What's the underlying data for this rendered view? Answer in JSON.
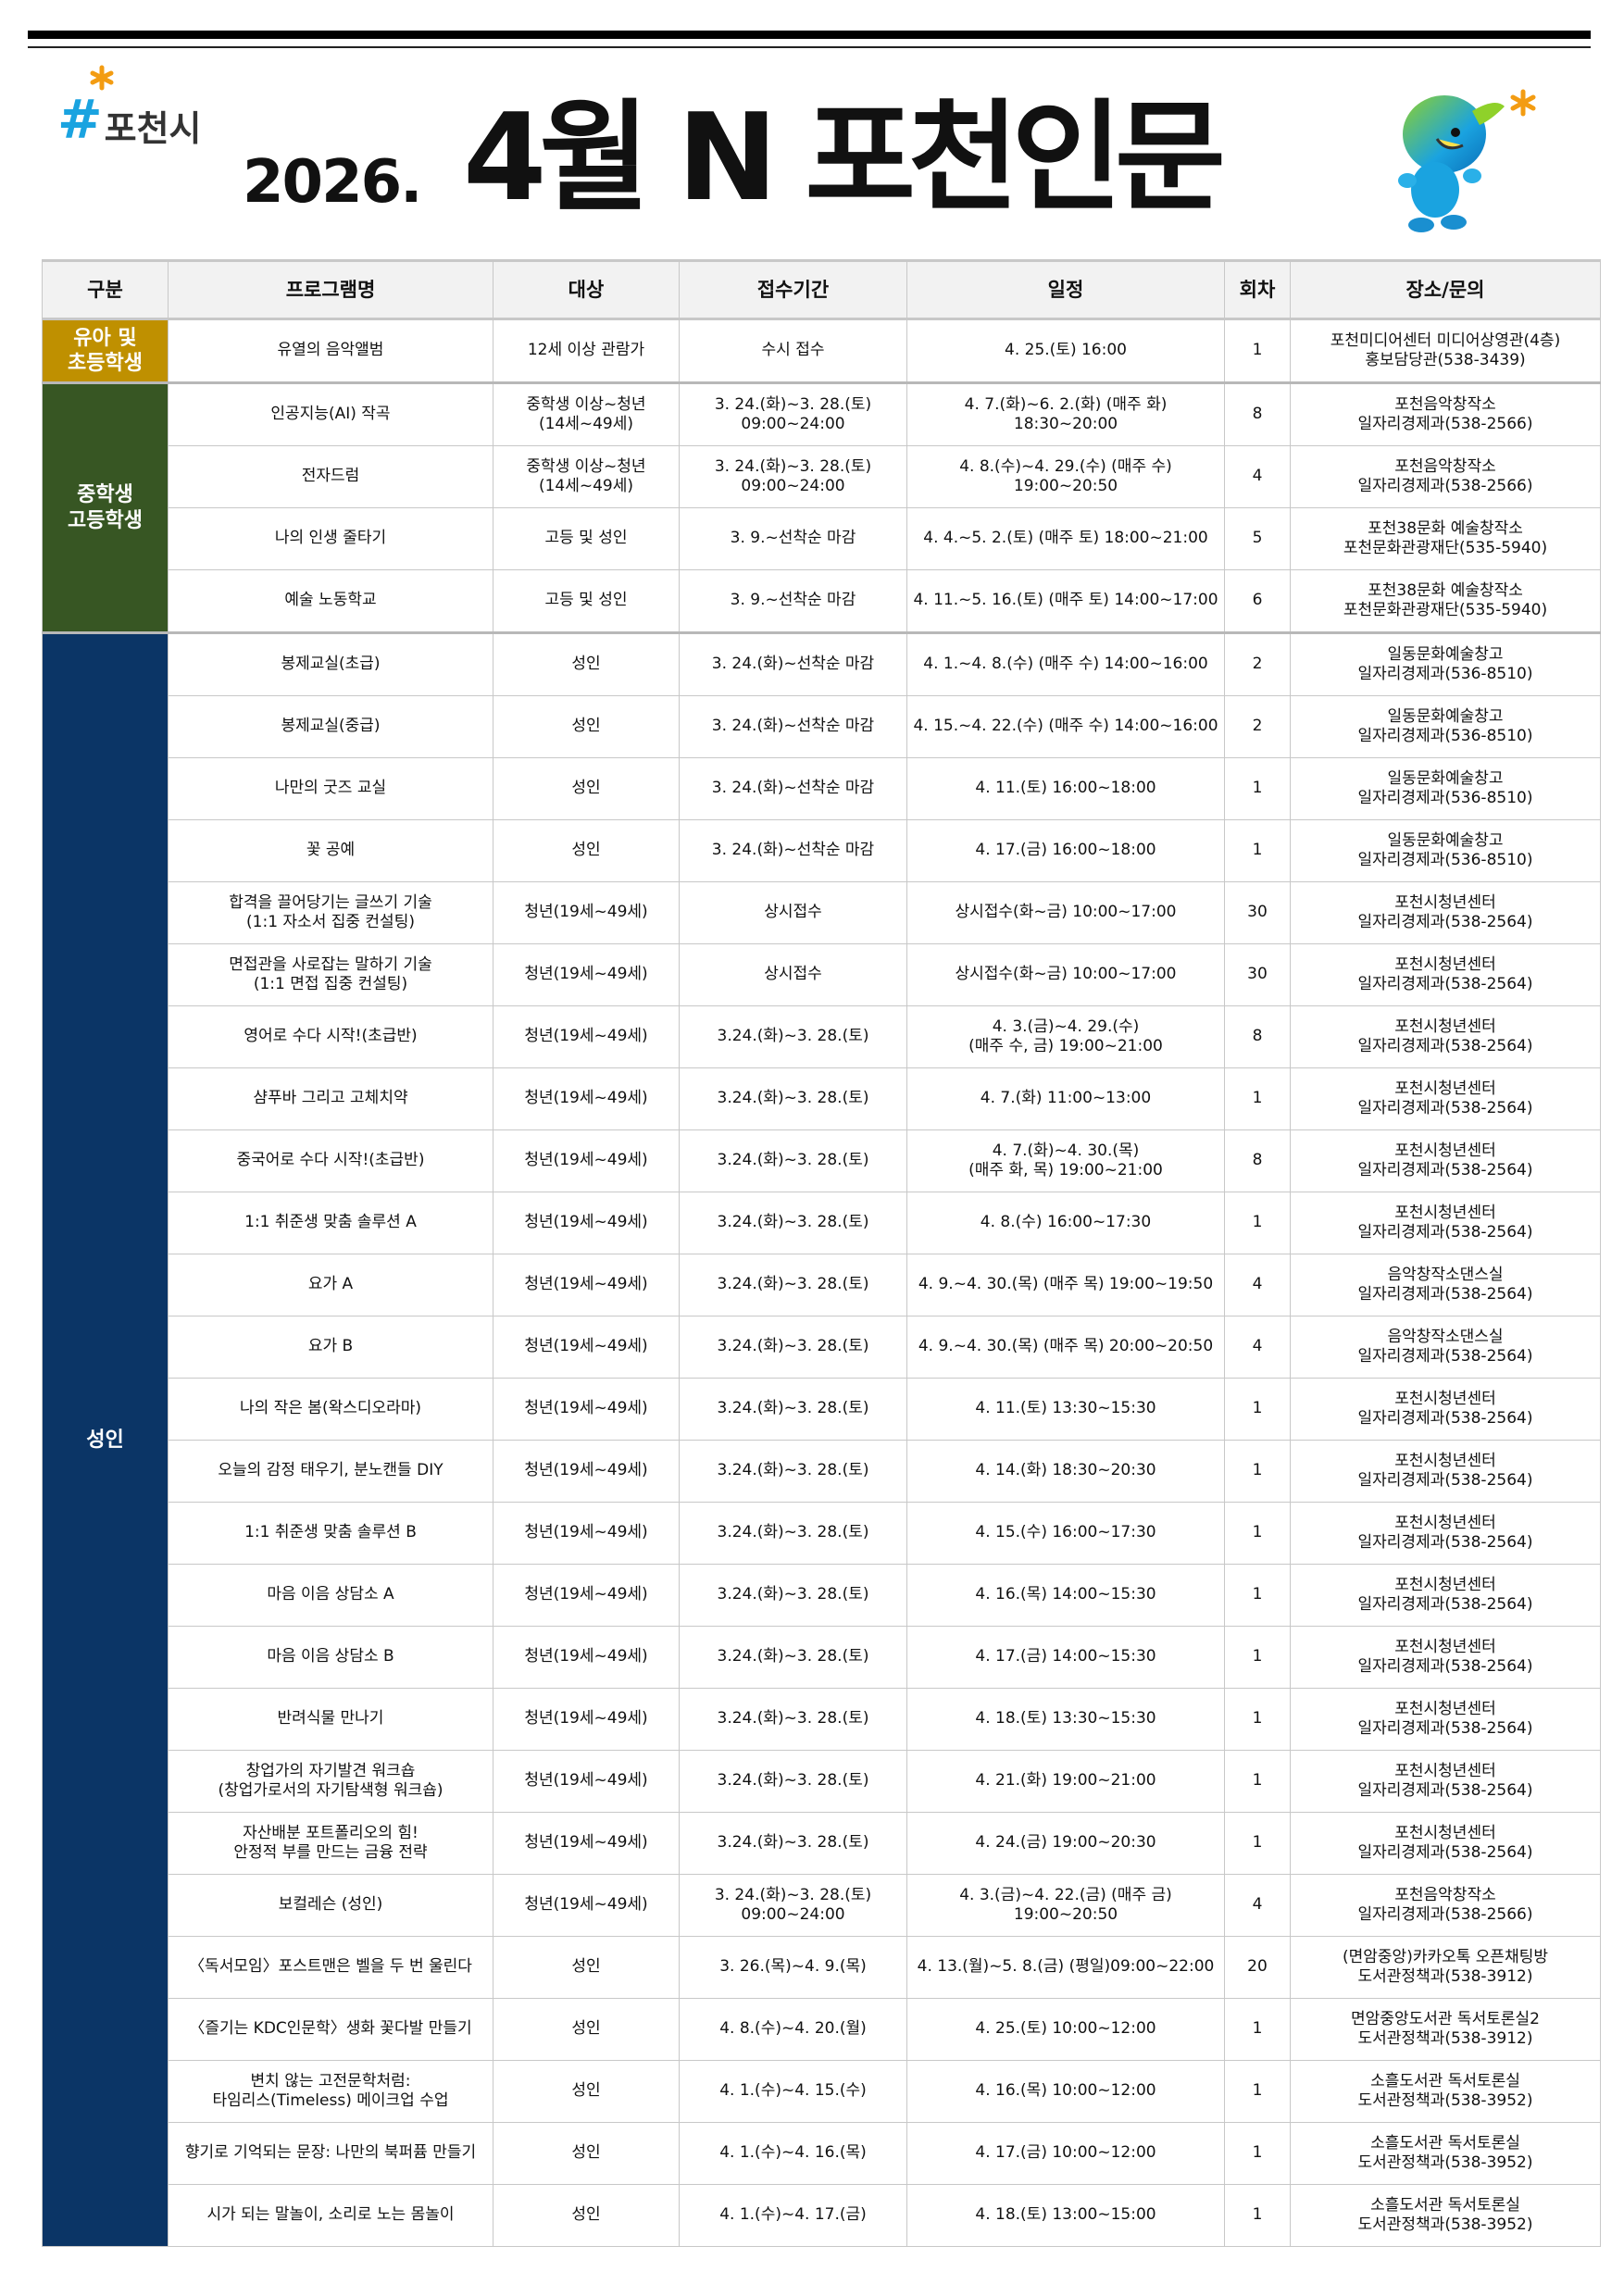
{
  "header": {
    "logo_text": "포천시",
    "year": "2026.",
    "title": "4월 N 포천인문"
  },
  "colors": {
    "youth": "#BF9000",
    "teen": "#375623",
    "adult": "#0B3566",
    "header_bg": "#F2F2F2"
  },
  "table": {
    "columns": [
      "구분",
      "프로그램명",
      "대상",
      "접수기간",
      "일정",
      "회차",
      "장소/문의"
    ],
    "groups": [
      {
        "label": "유아 및\n초등학생",
        "color": "#BF9000",
        "rows": [
          [
            "유열의 음악앨범",
            "12세 이상 관람가",
            "수시 접수",
            "4. 25.(토) 16:00",
            "1",
            "포천미디어센터 미디어상영관(4층)\n홍보담당관(538-3439)"
          ]
        ]
      },
      {
        "label": "중학생\n고등학생",
        "color": "#375623",
        "rows": [
          [
            "인공지능(AI) 작곡",
            "중학생 이상~청년\n(14세~49세)",
            "3. 24.(화)~3. 28.(토)\n09:00~24:00",
            "4. 7.(화)~6. 2.(화) (매주 화) 18:30~20:00",
            "8",
            "포천음악창작소\n일자리경제과(538-2566)"
          ],
          [
            "전자드럼",
            "중학생 이상~청년\n(14세~49세)",
            "3. 24.(화)~3. 28.(토)\n09:00~24:00",
            "4. 8.(수)~4. 29.(수) (매주 수) 19:00~20:50",
            "4",
            "포천음악창작소\n일자리경제과(538-2566)"
          ],
          [
            "나의 인생 줄타기",
            "고등 및 성인",
            "3. 9.~선착순 마감",
            "4. 4.~5. 2.(토) (매주 토) 18:00~21:00",
            "5",
            "포천38문화 예술창작소\n포천문화관광재단(535-5940)"
          ],
          [
            "예술 노동학교",
            "고등 및 성인",
            "3. 9.~선착순 마감",
            "4. 11.~5. 16.(토) (매주 토) 14:00~17:00",
            "6",
            "포천38문화 예술창작소\n포천문화관광재단(535-5940)"
          ]
        ]
      },
      {
        "label": "성인",
        "color": "#0B3566",
        "rows": [
          [
            "봉제교실(초급)",
            "성인",
            "3. 24.(화)~선착순 마감",
            "4. 1.~4. 8.(수) (매주 수) 14:00~16:00",
            "2",
            "일동문화예술창고\n일자리경제과(536-8510)"
          ],
          [
            "봉제교실(중급)",
            "성인",
            "3. 24.(화)~선착순 마감",
            "4. 15.~4. 22.(수) (매주 수) 14:00~16:00",
            "2",
            "일동문화예술창고\n일자리경제과(536-8510)"
          ],
          [
            "나만의 굿즈 교실",
            "성인",
            "3. 24.(화)~선착순 마감",
            "4. 11.(토) 16:00~18:00",
            "1",
            "일동문화예술창고\n일자리경제과(536-8510)"
          ],
          [
            "꽃 공예",
            "성인",
            "3. 24.(화)~선착순 마감",
            "4. 17.(금) 16:00~18:00",
            "1",
            "일동문화예술창고\n일자리경제과(536-8510)"
          ],
          [
            "합격을 끌어당기는 글쓰기 기술\n(1:1 자소서 집중 컨설팅)",
            "청년(19세~49세)",
            "상시접수",
            "상시접수(화~금) 10:00~17:00",
            "30",
            "포천시청년센터\n일자리경제과(538-2564)"
          ],
          [
            "면접관을 사로잡는 말하기 기술\n(1:1 면접 집중 컨설팅)",
            "청년(19세~49세)",
            "상시접수",
            "상시접수(화~금) 10:00~17:00",
            "30",
            "포천시청년센터\n일자리경제과(538-2564)"
          ],
          [
            "영어로 수다 시작!(초급반)",
            "청년(19세~49세)",
            "3.24.(화)~3. 28.(토)",
            "4. 3.(금)~4. 29.(수)\n(매주 수, 금) 19:00~21:00",
            "8",
            "포천시청년센터\n일자리경제과(538-2564)"
          ],
          [
            "샴푸바 그리고 고체치약",
            "청년(19세~49세)",
            "3.24.(화)~3. 28.(토)",
            "4. 7.(화) 11:00~13:00",
            "1",
            "포천시청년센터\n일자리경제과(538-2564)"
          ],
          [
            "중국어로 수다 시작!(초급반)",
            "청년(19세~49세)",
            "3.24.(화)~3. 28.(토)",
            "4. 7.(화)~4. 30.(목)\n(매주 화, 목) 19:00~21:00",
            "8",
            "포천시청년센터\n일자리경제과(538-2564)"
          ],
          [
            "1:1 취준생 맞춤 솔루션 A",
            "청년(19세~49세)",
            "3.24.(화)~3. 28.(토)",
            "4. 8.(수) 16:00~17:30",
            "1",
            "포천시청년센터\n일자리경제과(538-2564)"
          ],
          [
            "요가 A",
            "청년(19세~49세)",
            "3.24.(화)~3. 28.(토)",
            "4. 9.~4. 30.(목)  (매주 목) 19:00~19:50",
            "4",
            "음악창작소댄스실\n일자리경제과(538-2564)"
          ],
          [
            "요가 B",
            "청년(19세~49세)",
            "3.24.(화)~3. 28.(토)",
            "4. 9.~4. 30.(목)  (매주 목) 20:00~20:50",
            "4",
            "음악창작소댄스실\n일자리경제과(538-2564)"
          ],
          [
            "나의 작은 봄(왁스디오라마)",
            "청년(19세~49세)",
            "3.24.(화)~3. 28.(토)",
            "4. 11.(토) 13:30~15:30",
            "1",
            "포천시청년센터\n일자리경제과(538-2564)"
          ],
          [
            "오늘의 감정 태우기, 분노캔들 DIY",
            "청년(19세~49세)",
            "3.24.(화)~3. 28.(토)",
            "4. 14.(화) 18:30~20:30",
            "1",
            "포천시청년센터\n일자리경제과(538-2564)"
          ],
          [
            "1:1 취준생 맞춤 솔루션 B",
            "청년(19세~49세)",
            "3.24.(화)~3. 28.(토)",
            "4. 15.(수) 16:00~17:30",
            "1",
            "포천시청년센터\n일자리경제과(538-2564)"
          ],
          [
            "마음 이음 상담소 A",
            "청년(19세~49세)",
            "3.24.(화)~3. 28.(토)",
            "4. 16.(목) 14:00~15:30",
            "1",
            "포천시청년센터\n일자리경제과(538-2564)"
          ],
          [
            "마음 이음 상담소 B",
            "청년(19세~49세)",
            "3.24.(화)~3. 28.(토)",
            "4. 17.(금) 14:00~15:30",
            "1",
            "포천시청년센터\n일자리경제과(538-2564)"
          ],
          [
            "반려식물 만나기",
            "청년(19세~49세)",
            "3.24.(화)~3. 28.(토)",
            "4. 18.(토) 13:30~15:30",
            "1",
            "포천시청년센터\n일자리경제과(538-2564)"
          ],
          [
            "창업가의 자기발견 워크숍\n(창업가로서의 자기탐색형 워크숍)",
            "청년(19세~49세)",
            "3.24.(화)~3. 28.(토)",
            "4. 21.(화) 19:00~21:00",
            "1",
            "포천시청년센터\n일자리경제과(538-2564)"
          ],
          [
            "자산배분 포트폴리오의 힘!\n안정적 부를 만드는 금융 전략",
            "청년(19세~49세)",
            "3.24.(화)~3. 28.(토)",
            "4. 24.(금) 19:00~20:30",
            "1",
            "포천시청년센터\n일자리경제과(538-2564)"
          ],
          [
            "보컬레슨 (성인)",
            "청년(19세~49세)",
            "3. 24.(화)~3. 28.(토)\n09:00~24:00",
            "4. 3.(금)~4. 22.(금) (매주 금) 19:00~20:50",
            "4",
            "포천음악창작소\n일자리경제과(538-2566)"
          ],
          [
            "〈독서모임〉포스트맨은 벨을 두 번 울린다",
            "성인",
            "3. 26.(목)~4.  9.(목)",
            "4. 13.(월)~5. 8.(금) (평일)09:00~22:00",
            "20",
            "(면암중앙)카카오톡 오픈채팅방\n도서관정책과(538-3912)"
          ],
          [
            "〈즐기는 KDC인문학〉생화 꽃다발 만들기",
            "성인",
            "4. 8.(수)~4. 20.(월)",
            "4. 25.(토) 10:00~12:00",
            "1",
            "면암중앙도서관 독서토론실2\n도서관정책과(538-3912)"
          ],
          [
            "변치 않는 고전문학처럼:\n타임리스(Timeless) 메이크업 수업",
            "성인",
            "4. 1.(수)~4. 15.(수)",
            "4. 16.(목) 10:00~12:00",
            "1",
            "소흘도서관 독서토론실\n도서관정책과(538-3952)"
          ],
          [
            "향기로 기억되는 문장: 나만의 북퍼퓸 만들기",
            "성인",
            "4. 1.(수)~4. 16.(목)",
            "4. 17.(금) 10:00~12:00",
            "1",
            "소흘도서관 독서토론실\n도서관정책과(538-3952)"
          ],
          [
            "시가 되는 말놀이, 소리로 노는 몸놀이",
            "성인",
            "4. 1.(수)~4. 17.(금)",
            "4. 18.(토) 13:00~15:00",
            "1",
            "소흘도서관 독서토론실\n도서관정책과(538-3952)"
          ]
        ]
      }
    ]
  }
}
